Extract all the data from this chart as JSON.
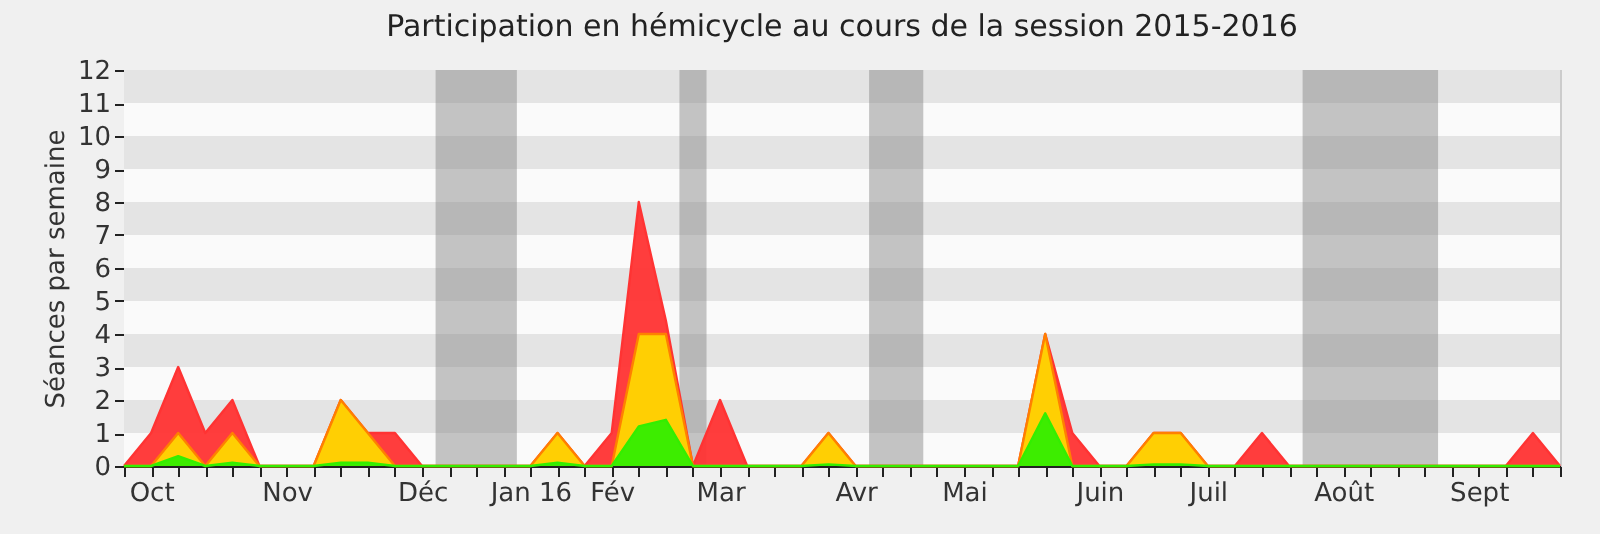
{
  "chart_data": {
    "type": "area",
    "title": "Participation en hémicycle au cours de la session 2015-2016",
    "ylabel": "Séances par semaine",
    "categories": [
      null,
      "Oct",
      null,
      null,
      null,
      null,
      "Nov",
      null,
      null,
      null,
      null,
      "Déc",
      null,
      null,
      null,
      "Jan 16",
      null,
      null,
      "Fév",
      null,
      null,
      null,
      "Mar",
      null,
      null,
      null,
      null,
      "Avr",
      null,
      null,
      null,
      "Mai",
      null,
      null,
      null,
      null,
      "Juin",
      null,
      null,
      null,
      "Juil",
      null,
      null,
      null,
      null,
      "Août",
      null,
      null,
      null,
      null,
      "Sept",
      null,
      null,
      null
    ],
    "series": [
      {
        "color": "#ff3333",
        "values": [
          0,
          1,
          3,
          1,
          2,
          0,
          0,
          0,
          2,
          1,
          1,
          0,
          0,
          0,
          0,
          0,
          1,
          0,
          1,
          8,
          4.4,
          0,
          2,
          0,
          0,
          0,
          1,
          0,
          0,
          0,
          0,
          0,
          0,
          0,
          4,
          1,
          0,
          0,
          1,
          1,
          0,
          0,
          1,
          0,
          0,
          0,
          0,
          0,
          0,
          0,
          0,
          0,
          1,
          0
        ]
      },
      {
        "color": "#ffd700",
        "values": [
          0,
          0,
          1,
          0,
          1,
          0,
          0,
          0,
          2,
          1,
          0,
          0,
          0,
          0,
          0,
          0,
          1,
          0,
          0,
          4,
          4,
          0,
          0,
          0,
          0,
          0,
          1,
          0,
          0,
          0,
          0,
          0,
          0,
          0,
          4,
          0,
          0,
          0,
          1,
          1,
          0,
          0,
          0,
          0,
          0,
          0,
          0,
          0,
          0,
          0,
          0,
          0,
          0,
          0
        ]
      },
      {
        "color": "#33ee00",
        "values": [
          0,
          0,
          0.3,
          0,
          0.1,
          0,
          0,
          0,
          0.1,
          0.1,
          0,
          0,
          0,
          0,
          0,
          0,
          0.1,
          0,
          0,
          1.2,
          1.4,
          0,
          0,
          0,
          0,
          0,
          0.05,
          0,
          0,
          0,
          0,
          0,
          0,
          0,
          1.6,
          0,
          0,
          0,
          0.05,
          0.05,
          0,
          0,
          0,
          0,
          0,
          0,
          0,
          0,
          0,
          0,
          0,
          0,
          0,
          0
        ]
      }
    ],
    "ylim": [
      0,
      12
    ],
    "yticks": [
      0,
      1,
      2,
      3,
      4,
      5,
      6,
      7,
      8,
      9,
      10,
      11,
      12
    ]
  }
}
